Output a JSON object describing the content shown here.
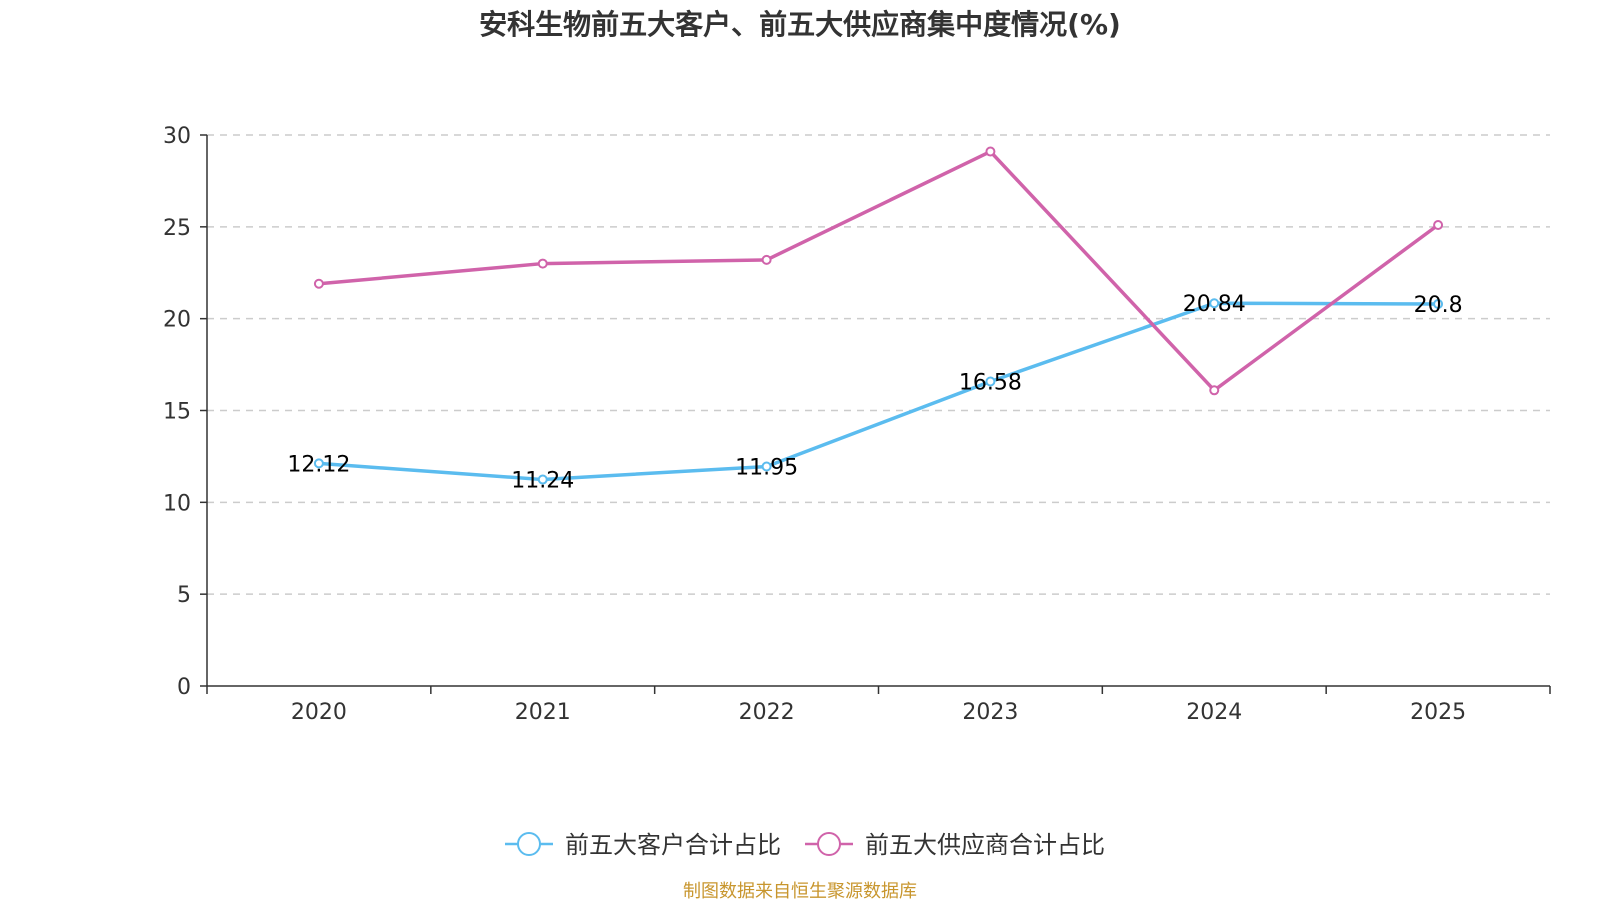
{
  "chart_data": {
    "type": "line",
    "title": "安科生物前五大客户、前五大供应商集中度情况(%)",
    "categories": [
      "2020",
      "2021",
      "2022",
      "2023",
      "2024",
      "2025"
    ],
    "ylim": [
      0,
      30
    ],
    "yticks": [
      0,
      5,
      10,
      15,
      20,
      25,
      30
    ],
    "yticklabels": [
      "0",
      "5",
      "10",
      "15",
      "20",
      "25",
      "30"
    ],
    "grid": true,
    "legend_position": "bottom-center",
    "series": [
      {
        "name": "前五大客户合计占比",
        "color": "#5bbcef",
        "values": [
          12.12,
          11.24,
          11.95,
          16.58,
          20.84,
          20.8
        ],
        "labels": [
          "12.12",
          "11.24",
          "11.95",
          "16.58",
          "20.84",
          "20.8"
        ]
      },
      {
        "name": "前五大供应商合计占比",
        "color": "#d063aa",
        "values": [
          21.9,
          23.0,
          23.2,
          29.1,
          16.1,
          25.1
        ]
      }
    ]
  },
  "source": {
    "text": "制图数据来自恒生聚源数据库",
    "color": "#c8962e"
  }
}
